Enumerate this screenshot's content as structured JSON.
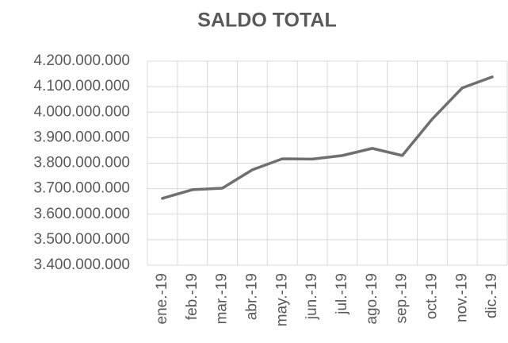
{
  "chart_data": {
    "type": "line",
    "title": "SALDO TOTAL",
    "categories": [
      "ene.-19",
      "feb.-19",
      "mar.-19",
      "abr.-19",
      "may.-19",
      "jun.-19",
      "jul.-19",
      "ago.-19",
      "sep.-19",
      "oct.-19",
      "nov.-19",
      "dic.-19"
    ],
    "series": [
      {
        "name": "Saldo total",
        "color": "#6f6f6f",
        "values": [
          3662000000,
          3696000000,
          3702000000,
          3774000000,
          3817000000,
          3816000000,
          3830000000,
          3858000000,
          3830000000,
          3973000000,
          4095000000,
          4138000000
        ]
      }
    ],
    "ylim": [
      3400000000,
      4200000000
    ],
    "yticks": [
      {
        "value": 3400000000,
        "label": "3.400.000.000"
      },
      {
        "value": 3500000000,
        "label": "3.500.000.000"
      },
      {
        "value": 3600000000,
        "label": "3.600.000.000"
      },
      {
        "value": 3700000000,
        "label": "3.700.000.000"
      },
      {
        "value": 3800000000,
        "label": "3.800.000.000"
      },
      {
        "value": 3900000000,
        "label": "3.900.000.000"
      },
      {
        "value": 4000000000,
        "label": "4.000.000.000"
      },
      {
        "value": 4100000000,
        "label": "4.100.000.000"
      },
      {
        "value": 4200000000,
        "label": "4.200.000.000"
      }
    ],
    "grid": true
  }
}
